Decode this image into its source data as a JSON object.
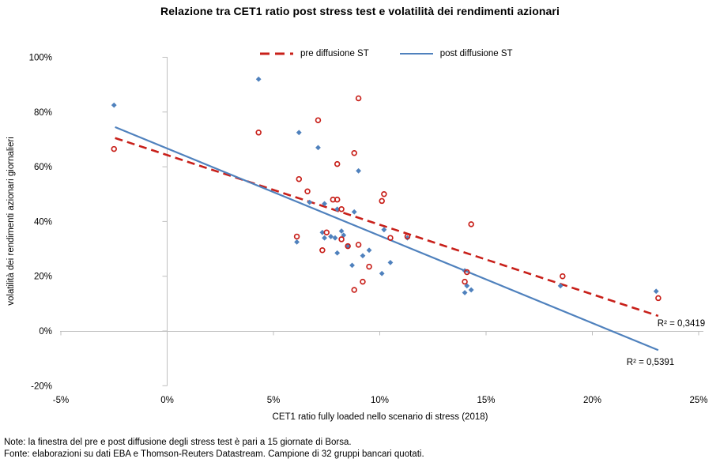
{
  "title": "Relazione tra CET1 ratio post stress test e volatilità dei rendimenti azionari",
  "notes": {
    "line1": "Note: la finestra del pre e post diffusione degli stress test è pari a 15 giornate di Borsa.",
    "line2": "Fonte: elaborazioni su dati EBA e Thomson-Reuters Datastream. Campione di 32 gruppi bancari quotati."
  },
  "colors": {
    "pre": "#C8201A",
    "post": "#4F81BD",
    "axis": "#BFBFBF",
    "text": "#000000"
  },
  "chart_data": {
    "type": "scatter",
    "title": "Relazione tra CET1 ratio post stress test e volatilità dei rendimenti azionari",
    "xlabel": "CET1 ratio fully loaded nello scenario di stress (2018)",
    "ylabel": "volatilità dei rendimenti azionari giornalieri",
    "xlim": [
      -5,
      25
    ],
    "ylim": [
      -20,
      100
    ],
    "x_ticks": [
      "-5%",
      "0%",
      "5%",
      "10%",
      "15%",
      "20%",
      "25%"
    ],
    "x_tick_values": [
      -5,
      0,
      5,
      10,
      15,
      20,
      25
    ],
    "y_ticks": [
      "100%",
      "80%",
      "60%",
      "40%",
      "20%",
      "0%",
      "-20%"
    ],
    "y_tick_values": [
      100,
      80,
      60,
      40,
      20,
      0,
      -20
    ],
    "grid": false,
    "legend_position": "top-center",
    "series": [
      {
        "key": "pre",
        "name": "pre diffusione ST",
        "marker": "open-circle",
        "color": "#C8201A",
        "points": [
          [
            -2.5,
            66.5
          ],
          [
            4.3,
            72.5
          ],
          [
            9,
            85
          ],
          [
            7.1,
            77
          ],
          [
            8.8,
            65
          ],
          [
            8,
            61
          ],
          [
            6.2,
            55.5
          ],
          [
            6.6,
            51
          ],
          [
            7.8,
            48
          ],
          [
            8,
            48
          ],
          [
            8.2,
            44.5
          ],
          [
            10.2,
            50
          ],
          [
            10.1,
            47.5
          ],
          [
            14.3,
            39
          ],
          [
            6.1,
            34.5
          ],
          [
            7.5,
            36
          ],
          [
            8.2,
            33.5
          ],
          [
            10.5,
            34
          ],
          [
            11.3,
            34.5
          ],
          [
            8.5,
            31
          ],
          [
            9,
            31.5
          ],
          [
            7.3,
            29.5
          ],
          [
            9.5,
            23.5
          ],
          [
            9.2,
            18
          ],
          [
            8.8,
            15
          ],
          [
            14.1,
            21.5
          ],
          [
            14,
            18
          ],
          [
            18.6,
            20
          ],
          [
            23.1,
            12
          ]
        ],
        "trendline": {
          "style": "dashed",
          "x1": -2.45,
          "y1": 70.5,
          "x2": 23.1,
          "y2": 5.5,
          "r2_label": "R² = 0,3419"
        }
      },
      {
        "key": "post",
        "name": "post diffusione ST",
        "marker": "diamond",
        "color": "#4F81BD",
        "points": [
          [
            -2.5,
            82.5
          ],
          [
            4.3,
            92
          ],
          [
            6.2,
            72.5
          ],
          [
            7.1,
            67
          ],
          [
            9,
            58.5
          ],
          [
            6.7,
            47
          ],
          [
            7.4,
            46.5
          ],
          [
            8,
            44.5
          ],
          [
            8.8,
            43.5
          ],
          [
            10.2,
            37
          ],
          [
            8.2,
            36.5
          ],
          [
            8.3,
            35
          ],
          [
            7.3,
            36
          ],
          [
            7.4,
            34
          ],
          [
            7.7,
            34.5
          ],
          [
            7.9,
            34
          ],
          [
            6.1,
            32.5
          ],
          [
            11.3,
            34
          ],
          [
            8.5,
            31
          ],
          [
            9.5,
            29.5
          ],
          [
            9.2,
            27.5
          ],
          [
            8,
            28.5
          ],
          [
            10.5,
            25
          ],
          [
            8.7,
            24
          ],
          [
            10.1,
            21
          ],
          [
            14,
            22
          ],
          [
            14.1,
            16.5
          ],
          [
            14.3,
            15
          ],
          [
            14,
            14
          ],
          [
            18.5,
            16.5
          ],
          [
            23,
            14.5
          ]
        ],
        "trendline": {
          "style": "solid",
          "x1": -2.45,
          "y1": 74.5,
          "x2": 23.1,
          "y2": -7,
          "r2_label": "R² = 0,5391"
        }
      }
    ]
  }
}
